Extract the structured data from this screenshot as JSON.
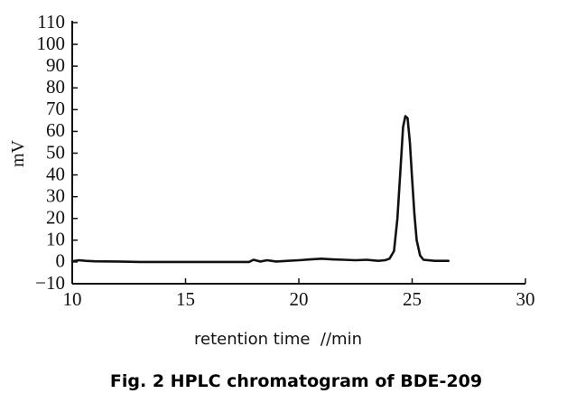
{
  "chart_data": {
    "type": "line",
    "title": "Fig. 2 HPLC chromatogram of BDE-209",
    "x_label": "retention time  //min",
    "y_label": "mV",
    "x": [
      10,
      10.3,
      10.6,
      11,
      12,
      13,
      14,
      15,
      16,
      17,
      17.8,
      18,
      18.3,
      18.6,
      19,
      19.5,
      20,
      20.5,
      21,
      21.5,
      22,
      22.5,
      23,
      23.5,
      23.8,
      24,
      24.2,
      24.35,
      24.5,
      24.6,
      24.7,
      24.8,
      24.9,
      25.0,
      25.1,
      25.2,
      25.35,
      25.5,
      26,
      26.6
    ],
    "values": [
      0.3,
      0.8,
      0.5,
      0.3,
      0.2,
      0,
      0,
      0,
      0,
      0,
      0,
      1,
      0.2,
      0.8,
      0.2,
      0.5,
      0.8,
      1.2,
      1.5,
      1.2,
      1,
      0.8,
      1,
      0.5,
      0.8,
      1.5,
      5,
      20,
      45,
      62,
      67,
      66,
      55,
      38,
      22,
      10,
      3,
      1,
      0.5,
      0.5
    ],
    "color": "#111111",
    "xlim": [
      10,
      30
    ],
    "xticks": [
      10,
      15,
      20,
      25,
      30
    ],
    "ylim": [
      -10,
      110
    ],
    "yticks": [
      {
        "value": -10,
        "label": "−10"
      },
      0,
      10,
      20,
      30,
      40,
      50,
      60,
      70,
      80,
      90,
      100,
      110
    ],
    "grid": false
  }
}
